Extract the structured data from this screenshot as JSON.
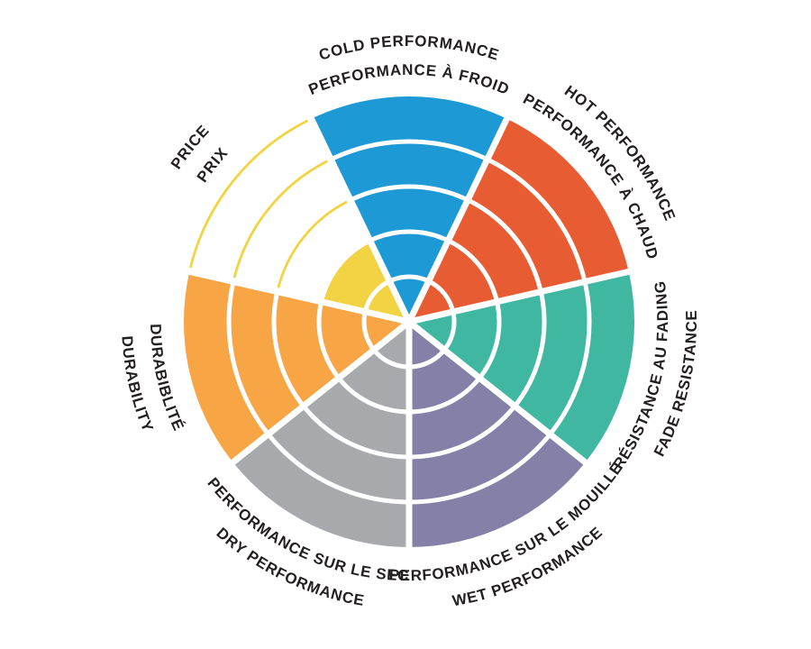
{
  "chart_data": {
    "type": "polar-rose",
    "title": "",
    "max_rings": 5,
    "ring_values": [
      1,
      2,
      3,
      4,
      5
    ],
    "legend_position": "labels-around-circle",
    "grid": "white ring and spoke separators",
    "colors": {
      "background": "#FFFFFF",
      "label_text": "#231F20",
      "separator": "#FFFFFF"
    },
    "sectors": [
      {
        "id": "cold-performance",
        "label_en": "COLD PERFORMANCE",
        "label_fr": "PERFORMANCE À FROID",
        "value": 5,
        "max": 5,
        "color": "#1D9AD6",
        "style": "filled"
      },
      {
        "id": "hot-performance",
        "label_en": "HOT PERFORMANCE",
        "label_fr": "PERFORMANCE À CHAUD",
        "value": 5,
        "max": 5,
        "color": "#E85C33",
        "style": "filled"
      },
      {
        "id": "fade-resistance",
        "label_en": "FADE RESISTANCE",
        "label_fr": "RÉSISTANCE AU FADING",
        "value": 5,
        "max": 5,
        "color": "#3FB7A1",
        "style": "filled"
      },
      {
        "id": "wet-performance",
        "label_en": "WET PERFORMANCE",
        "label_fr": "PERFORMANCE SUR LE MOUILLÉ",
        "value": 5,
        "max": 5,
        "color": "#8480A8",
        "style": "filled"
      },
      {
        "id": "dry-performance",
        "label_en": "DRY PERFORMANCE",
        "label_fr": "PERFORMANCE SUR LE SEC",
        "value": 5,
        "max": 5,
        "color": "#A7A9AC",
        "style": "filled"
      },
      {
        "id": "durability",
        "label_en": "DURABILITY",
        "label_fr": "DURABIBLITÉ",
        "value": 5,
        "max": 5,
        "color": "#F8A545",
        "style": "filled"
      },
      {
        "id": "price",
        "label_en": "PRICE",
        "label_fr": "PRIX",
        "value": 2,
        "max": 5,
        "color": "#F2D343",
        "style": "filled-with-outline-remainder"
      }
    ]
  }
}
